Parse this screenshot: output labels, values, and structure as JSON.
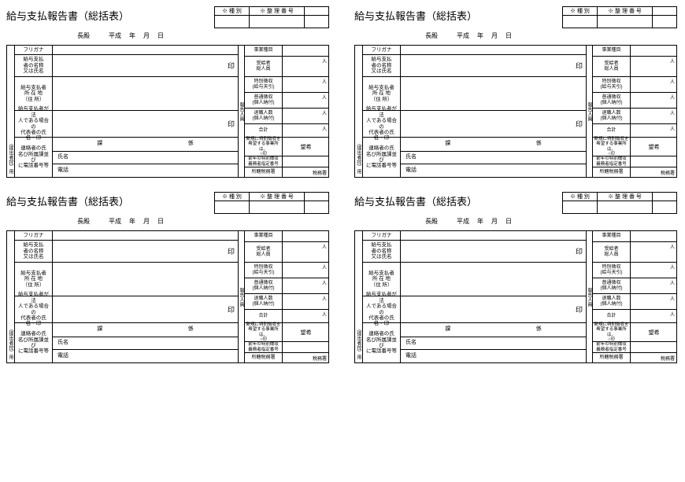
{
  "title": "給与支払報告書（総括表）",
  "header": {
    "col1": "※ 種 別",
    "col2": "※ 整 理 番 号",
    "col1_w": 44,
    "col2_w": 70,
    "col3_w": 30
  },
  "sub": {
    "mayor": "長殿",
    "era": "平成",
    "y": "年",
    "m": "月",
    "d": "日"
  },
  "left": {
    "r1": "フリガナ",
    "r2": "給与支払\n者の名称\n又は氏名",
    "r3": "給与支払者\n所 在 地\n（住 所）",
    "r4": "給与支払者が法\n人である場合の\n代表者の氏名・印",
    "r5": "連絡者の氏\n名び所属課並び\nに電話番号等"
  },
  "mid": {
    "seal": "印",
    "ka": "課",
    "kakari": "係",
    "name": "氏名",
    "tel": "電話"
  },
  "strip2": "報告人員",
  "right": {
    "r0": "事業種目",
    "r1": "受給者\n総人員",
    "r2": "特別徴収\n(給与天引)",
    "r3": "普通徴収\n(個人納付)",
    "r4": "退職人数\n(個人納付)",
    "r5": "合計",
    "r6": "新規に特別徴収を\n希望する事業所は、\n○印",
    "r7": "前年の特別徴収\n義務者指定番号",
    "r8": "所轄税務署",
    "unit": "人",
    "circle": "希\n望",
    "office": "税務署"
  },
  "side": "（提出者控）用",
  "heights": {
    "h_r1": 12,
    "h_r2": 28,
    "h_r3": 43,
    "h_r4": 34,
    "h_r5a": 18,
    "h_r5b": 16,
    "h_r5c": 16,
    "rh0": 14,
    "rh1": 26,
    "rh2": 20,
    "rh3": 20,
    "rh4": 20,
    "rh5": 17,
    "rh6": 24,
    "rh7": 14,
    "rh8": 12
  },
  "colors": {
    "line": "#000000",
    "bg": "#ffffff",
    "text": "#000000"
  }
}
